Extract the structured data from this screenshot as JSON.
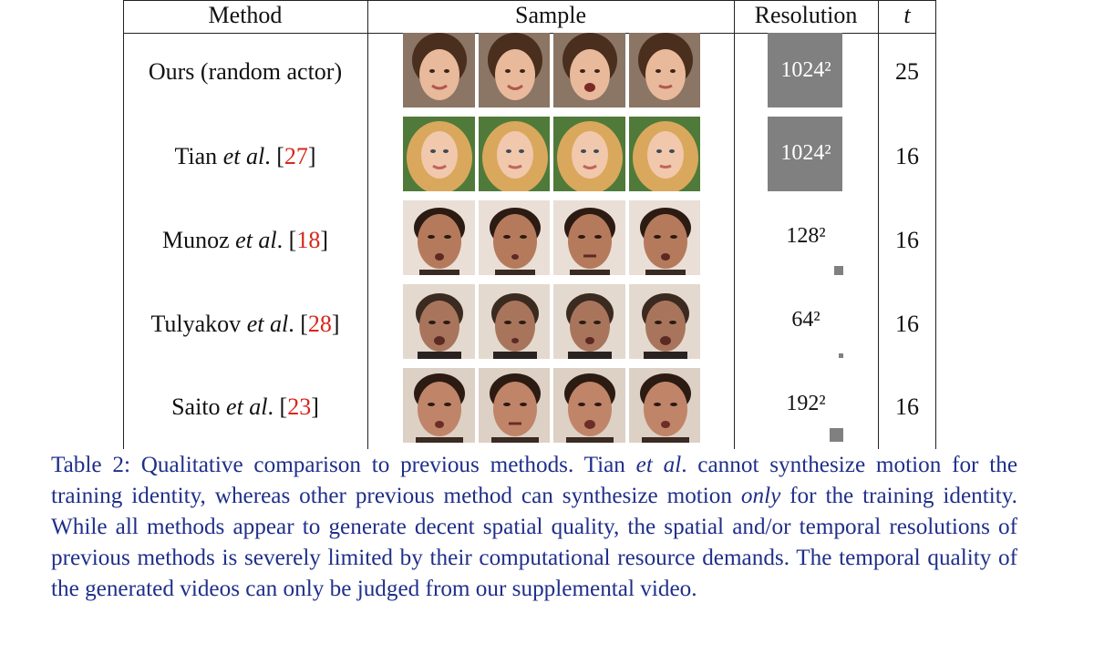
{
  "table": {
    "headers": {
      "method": "Method",
      "sample": "Sample",
      "resolution": "Resolution",
      "t": "t"
    },
    "rows": [
      {
        "method_prefix": "Ours (random actor)",
        "method_italic": "",
        "method_suffix": "",
        "citation": "",
        "citation_close": "",
        "resolution": "1024²",
        "t": "25",
        "sample_desc": "girl, brown hair, smiling"
      },
      {
        "method_prefix": "Tian ",
        "method_italic": "et al",
        "method_suffix": ". [",
        "citation": "27",
        "citation_close": "]",
        "resolution": "1024²",
        "t": "16",
        "sample_desc": "blonde woman, long hair"
      },
      {
        "method_prefix": "Munoz ",
        "method_italic": "et al",
        "method_suffix": ". [",
        "citation": "18",
        "citation_close": "]",
        "resolution": "128²",
        "t": "16",
        "sample_desc": "man, short dark hair"
      },
      {
        "method_prefix": "Tulyakov ",
        "method_italic": "et al",
        "method_suffix": ". [",
        "citation": "28",
        "citation_close": "]",
        "resolution": "64²",
        "t": "16",
        "sample_desc": "man, low-res noisy"
      },
      {
        "method_prefix": "Saito ",
        "method_italic": "et al",
        "method_suffix": ". [",
        "citation": "23",
        "citation_close": "]",
        "resolution": "192²",
        "t": "16",
        "sample_desc": "man, short dark hair"
      }
    ]
  },
  "caption": {
    "p1": "Table 2: Qualitative comparison to previous methods. Tian ",
    "i1": "et al",
    "p2": ". cannot synthesize motion for the training identity, whereas other previous method can synthesize motion ",
    "i2": "only",
    "p3": " for the training identity.  While all methods appear to generate decent spatial quality, the spatial and/or temporal resolutions of previous methods is severely limited by their computational resource demands.  The temporal quality of the generated videos can only be judged from our supplemental video."
  },
  "colors": {
    "caption": "#1f2f8a",
    "citation": "#d8261b",
    "resolution_block": "#808080"
  }
}
